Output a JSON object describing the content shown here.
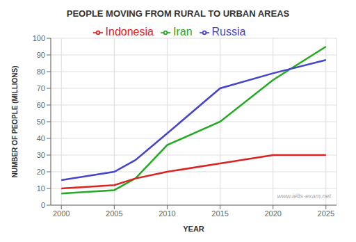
{
  "chart_data": {
    "type": "line",
    "title": "PEOPLE MOVING FROM RURAL TO URBAN AREAS",
    "x_label": "YEAR",
    "y_label": "NUMBER OF PEOPLE (MILLIONS)",
    "annotations": [
      "www.ielts-exam.net"
    ],
    "xlim": [
      1999,
      2026
    ],
    "ylim": [
      0,
      100
    ],
    "xticks": [
      2000,
      2005,
      2010,
      2015,
      2020,
      2025
    ],
    "yticks": [
      0,
      10,
      20,
      30,
      40,
      50,
      60,
      70,
      80,
      90,
      100
    ],
    "grid": true,
    "legend": "top",
    "series": [
      {
        "name": "Iran",
        "color": "#22aa22",
        "x": [
          2000,
          2005,
          2007,
          2010,
          2015,
          2020,
          2025
        ],
        "values": [
          7,
          9,
          16,
          36,
          50,
          75,
          95
        ]
      },
      {
        "name": "Indonesia",
        "color": "#dd2222",
        "x": [
          2000,
          2005,
          2007,
          2010,
          2015,
          2020,
          2022,
          2025
        ],
        "values": [
          10,
          12,
          16,
          20,
          25,
          30,
          30,
          30
        ]
      },
      {
        "name": "Russia",
        "color": "#4444cc",
        "x": [
          2000,
          2005,
          2007,
          2010,
          2015,
          2020,
          2025
        ],
        "values": [
          15,
          20,
          27,
          43,
          70,
          79,
          87
        ]
      }
    ]
  }
}
